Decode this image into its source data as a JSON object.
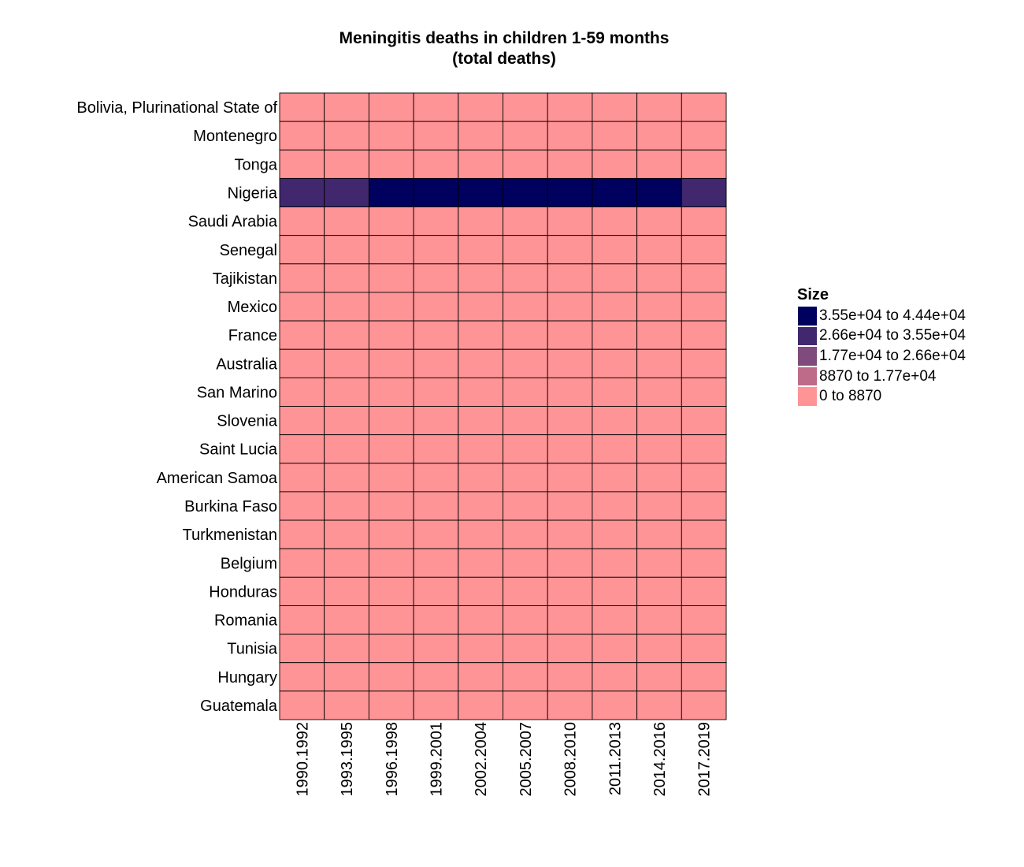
{
  "chart_data": {
    "type": "heatmap",
    "title": "Meningitis deaths in children 1-59 months",
    "subtitle": "(total deaths)",
    "x": [
      "1990.1992",
      "1993.1995",
      "1996.1998",
      "1999.2001",
      "2002.2004",
      "2005.2007",
      "2008.2010",
      "2011.2013",
      "2014.2016",
      "2017.2019"
    ],
    "y": [
      "Bolivia, Plurinational State of",
      "Montenegro",
      "Tonga",
      "Nigeria",
      "Saudi Arabia",
      "Senegal",
      "Tajikistan",
      "Mexico",
      "France",
      "Australia",
      "San Marino",
      "Slovenia",
      "Saint Lucia",
      "American Samoa",
      "Burkina Faso",
      "Turkmenistan",
      "Belgium",
      "Honduras",
      "Romania",
      "Tunisia",
      "Hungary",
      "Guatemala"
    ],
    "bins": [
      {
        "label": "3.55e+04 to 4.44e+04",
        "color": "#00005f"
      },
      {
        "label": "2.66e+04 to 3.55e+04",
        "color": "#41286e"
      },
      {
        "label": "1.77e+04 to 2.66e+04",
        "color": "#7f4a7c"
      },
      {
        "label": "8870 to 1.77e+04",
        "color": "#bd6b88"
      },
      {
        "label": "0 to 8870",
        "color": "#ff9496"
      }
    ],
    "values": [
      [
        0,
        0,
        0,
        0,
        0,
        0,
        0,
        0,
        0,
        0
      ],
      [
        0,
        0,
        0,
        0,
        0,
        0,
        0,
        0,
        0,
        0
      ],
      [
        0,
        0,
        0,
        0,
        0,
        0,
        0,
        0,
        0,
        0
      ],
      [
        3,
        3,
        4,
        4,
        4,
        4,
        4,
        4,
        4,
        3
      ],
      [
        0,
        0,
        0,
        0,
        0,
        0,
        0,
        0,
        0,
        0
      ],
      [
        0,
        0,
        0,
        0,
        0,
        0,
        0,
        0,
        0,
        0
      ],
      [
        0,
        0,
        0,
        0,
        0,
        0,
        0,
        0,
        0,
        0
      ],
      [
        0,
        0,
        0,
        0,
        0,
        0,
        0,
        0,
        0,
        0
      ],
      [
        0,
        0,
        0,
        0,
        0,
        0,
        0,
        0,
        0,
        0
      ],
      [
        0,
        0,
        0,
        0,
        0,
        0,
        0,
        0,
        0,
        0
      ],
      [
        0,
        0,
        0,
        0,
        0,
        0,
        0,
        0,
        0,
        0
      ],
      [
        0,
        0,
        0,
        0,
        0,
        0,
        0,
        0,
        0,
        0
      ],
      [
        0,
        0,
        0,
        0,
        0,
        0,
        0,
        0,
        0,
        0
      ],
      [
        0,
        0,
        0,
        0,
        0,
        0,
        0,
        0,
        0,
        0
      ],
      [
        0,
        0,
        0,
        0,
        0,
        0,
        0,
        0,
        0,
        0
      ],
      [
        0,
        0,
        0,
        0,
        0,
        0,
        0,
        0,
        0,
        0
      ],
      [
        0,
        0,
        0,
        0,
        0,
        0,
        0,
        0,
        0,
        0
      ],
      [
        0,
        0,
        0,
        0,
        0,
        0,
        0,
        0,
        0,
        0
      ],
      [
        0,
        0,
        0,
        0,
        0,
        0,
        0,
        0,
        0,
        0
      ],
      [
        0,
        0,
        0,
        0,
        0,
        0,
        0,
        0,
        0,
        0
      ],
      [
        0,
        0,
        0,
        0,
        0,
        0,
        0,
        0,
        0,
        0
      ],
      [
        0,
        0,
        0,
        0,
        0,
        0,
        0,
        0,
        0,
        0
      ]
    ],
    "legend": {
      "title": "Size",
      "position": "right"
    },
    "grid": false
  }
}
